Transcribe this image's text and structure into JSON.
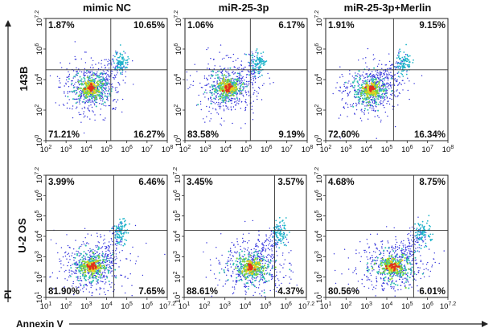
{
  "figure": {
    "column_titles": [
      "mimic NC",
      "miR-25-3p",
      "miR-25-3p+Merlin"
    ],
    "row_labels": [
      "143B",
      "U-2 OS"
    ],
    "x_axis_title": "Annexin V",
    "y_axis_title": "PI"
  },
  "chart_data": [
    {
      "type": "scatter",
      "cell_line": "143B",
      "condition": "mimic NC",
      "quadrants": {
        "upper_left": "1.87%",
        "upper_right": "10.65%",
        "lower_left": "71.21%",
        "lower_right": "16.27%"
      },
      "x_ticks": [
        "10^2",
        "10^3",
        "10^4",
        "10^5",
        "10^6",
        "10^7",
        "10^8"
      ],
      "y_ticks": [
        "10^0",
        "10^2",
        "10^4",
        "10^6",
        "10^7.2"
      ],
      "xlim": [
        2,
        8
      ],
      "ylim": [
        0,
        7.2
      ],
      "x_scale": "log",
      "y_scale": "log",
      "grid": false
    },
    {
      "type": "scatter",
      "cell_line": "143B",
      "condition": "miR-25-3p",
      "quadrants": {
        "upper_left": "1.06%",
        "upper_right": "6.17%",
        "lower_left": "83.58%",
        "lower_right": "9.19%"
      },
      "x_ticks": [
        "10^2",
        "10^3",
        "10^4",
        "10^5",
        "10^6",
        "10^7",
        "10^8"
      ],
      "y_ticks": [
        "10^0",
        "10^2",
        "10^4",
        "10^6",
        "10^7.2"
      ],
      "xlim": [
        2,
        8
      ],
      "ylim": [
        0,
        7.2
      ],
      "x_scale": "log",
      "y_scale": "log",
      "grid": false
    },
    {
      "type": "scatter",
      "cell_line": "143B",
      "condition": "miR-25-3p+Merlin",
      "quadrants": {
        "upper_left": "1.91%",
        "upper_right": "9.15%",
        "lower_left": "72.60%",
        "lower_right": "16.34%"
      },
      "x_ticks": [
        "10^2",
        "10^3",
        "10^4",
        "10^5",
        "10^6",
        "10^7",
        "10^8"
      ],
      "y_ticks": [
        "10^0",
        "10^2",
        "10^4",
        "10^6",
        "10^7.2"
      ],
      "xlim": [
        2,
        8
      ],
      "ylim": [
        0,
        7.2
      ],
      "x_scale": "log",
      "y_scale": "log",
      "grid": false
    },
    {
      "type": "scatter",
      "cell_line": "U-2 OS",
      "condition": "mimic NC",
      "quadrants": {
        "upper_left": "3.99%",
        "upper_right": "6.46%",
        "lower_left": "81.90%",
        "lower_right": "7.65%"
      },
      "x_ticks": [
        "10^1",
        "10^2",
        "10^3",
        "10^4",
        "10^5",
        "10^6",
        "10^7.2"
      ],
      "y_ticks": [
        "10^1",
        "10^2",
        "10^3",
        "10^4",
        "10^5",
        "10^6",
        "10^7.2"
      ],
      "xlim": [
        1,
        7.2
      ],
      "ylim": [
        1,
        7.2
      ],
      "x_scale": "log",
      "y_scale": "log",
      "grid": false
    },
    {
      "type": "scatter",
      "cell_line": "U-2 OS",
      "condition": "miR-25-3p",
      "quadrants": {
        "upper_left": "3.45%",
        "upper_right": "3.57%",
        "lower_left": "88.61%",
        "lower_right": "4.37%"
      },
      "x_ticks": [
        "10^1",
        "10^2",
        "10^3",
        "10^4",
        "10^5",
        "10^6",
        "10^7.2"
      ],
      "y_ticks": [
        "10^1",
        "10^2",
        "10^3",
        "10^4",
        "10^5",
        "10^6",
        "10^7.2"
      ],
      "xlim": [
        1,
        7.2
      ],
      "ylim": [
        1,
        7.2
      ],
      "x_scale": "log",
      "y_scale": "log",
      "grid": false
    },
    {
      "type": "scatter",
      "cell_line": "U-2 OS",
      "condition": "miR-25-3p+Merlin",
      "quadrants": {
        "upper_left": "4.68%",
        "upper_right": "8.75%",
        "lower_left": "80.56%",
        "lower_right": "6.01%"
      },
      "x_ticks": [
        "10^1",
        "10^2",
        "10^3",
        "10^4",
        "10^5",
        "10^6",
        "10^7.2"
      ],
      "y_ticks": [
        "10^1",
        "10^2",
        "10^3",
        "10^4",
        "10^5",
        "10^6",
        "10^7.2"
      ],
      "xlim": [
        1,
        7.2
      ],
      "ylim": [
        1,
        7.2
      ],
      "x_scale": "log",
      "y_scale": "log",
      "grid": false
    }
  ]
}
